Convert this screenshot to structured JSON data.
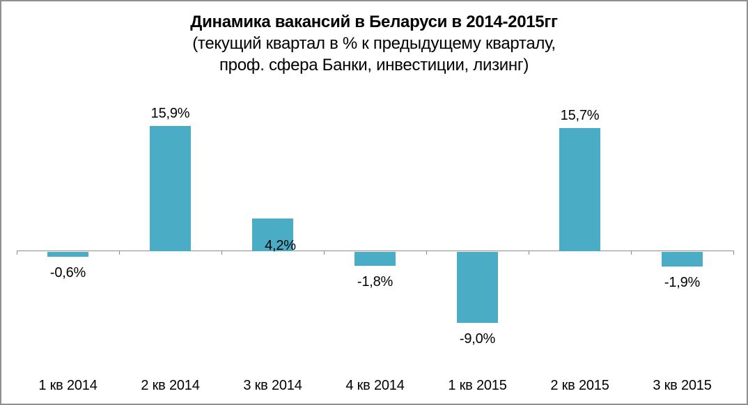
{
  "chart_data": {
    "type": "bar",
    "title": "Динамика вакансий в Беларуси в 2014-2015гг",
    "subtitle_lines": [
      "(текущий квартал в % к предыдущему кварталу,",
      "проф. сфера Банки, инвестиции, лизинг)"
    ],
    "categories": [
      "1 кв 2014",
      "2 кв 2014",
      "3 кв 2014",
      "4 кв 2014",
      "1 кв 2015",
      "2 кв 2015",
      "3 кв 2015"
    ],
    "values": [
      -0.6,
      15.9,
      4.2,
      -1.8,
      -9.0,
      15.7,
      -1.9
    ],
    "value_labels": [
      "-0,6%",
      "15,9%",
      "4,2%",
      "-1,8%",
      "-9,0%",
      "15,7%",
      "-1,9%"
    ],
    "label_positions": [
      "below",
      "above",
      "base",
      "below",
      "below",
      "above",
      "below"
    ],
    "xlabel": "",
    "ylabel": "",
    "unit": "percent of previous quarter",
    "ylim": [
      -11,
      17
    ],
    "grid": false,
    "legend": false,
    "colors": {
      "bar": "#4BACC6",
      "axis": "#8C8C8C",
      "frame": "#909090",
      "text": "#000000"
    }
  }
}
